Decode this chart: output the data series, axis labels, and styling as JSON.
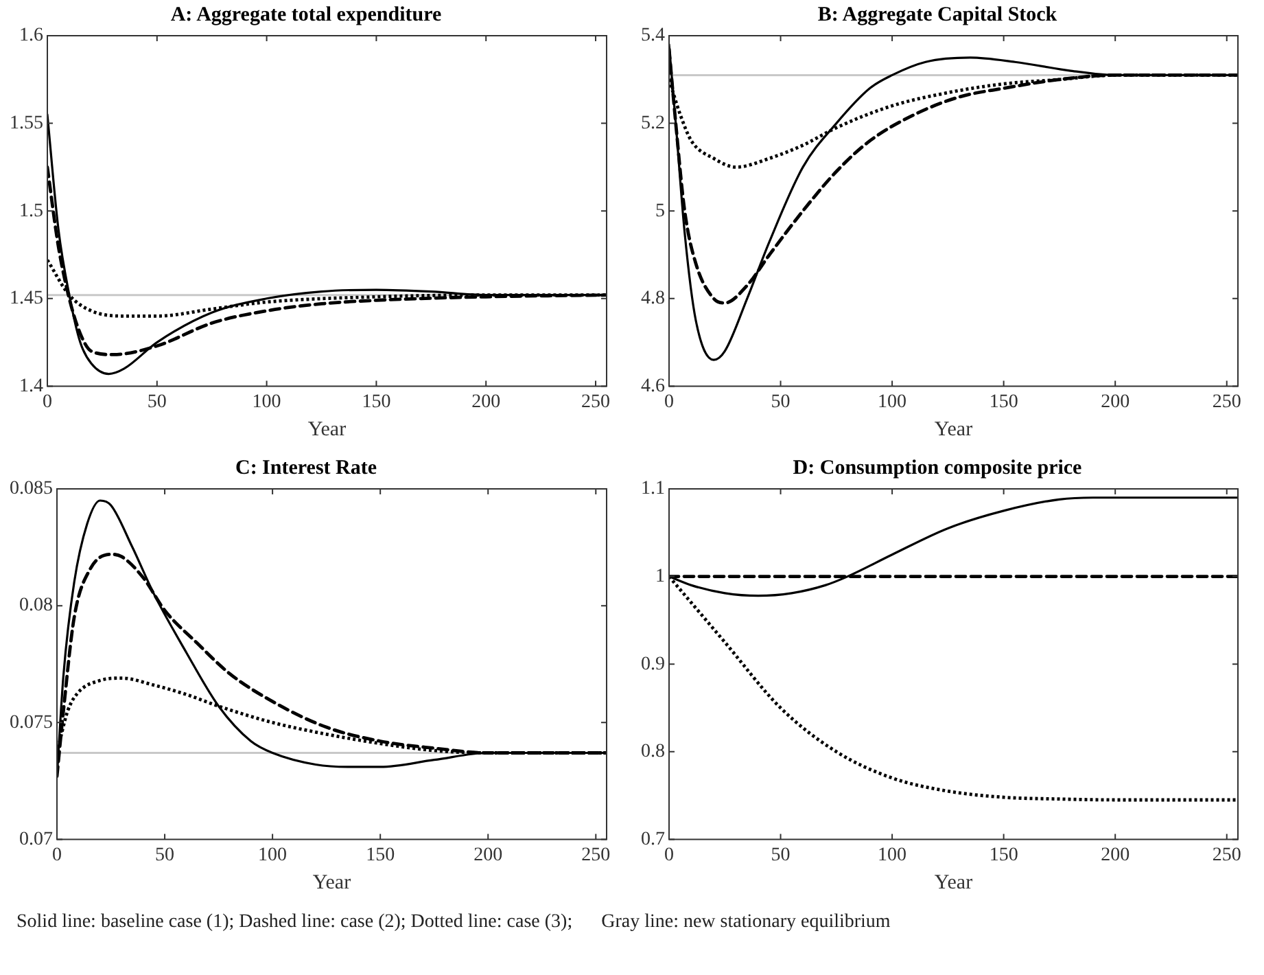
{
  "chart_data": [
    {
      "type": "line",
      "title": "A: Aggregate total expenditure",
      "xlabel": "Year",
      "xlim": [
        0,
        255
      ],
      "xticks": [
        0,
        50,
        100,
        150,
        200,
        250
      ],
      "ylim": [
        1.4,
        1.6
      ],
      "yticks": [
        1.4,
        1.45,
        1.5,
        1.55,
        1.6
      ],
      "grid": false,
      "legend": false,
      "marker": "none",
      "ref_lines": [
        {
          "axis": "y",
          "value": 1.452,
          "color": "#c8c8c8"
        }
      ],
      "series": [
        {
          "color": "#000000",
          "line_style": "solid",
          "x": [
            0,
            5,
            10,
            15,
            20,
            28,
            35,
            50,
            75,
            100,
            125,
            150,
            175,
            200,
            255
          ],
          "values": [
            1.555,
            1.49,
            1.452,
            1.425,
            1.413,
            1.407,
            1.41,
            1.425,
            1.442,
            1.45,
            1.454,
            1.455,
            1.454,
            1.452,
            1.452
          ]
        },
        {
          "color": "#000000",
          "line_style": "dashed",
          "x": [
            0,
            5,
            10,
            15,
            20,
            30,
            50,
            75,
            100,
            125,
            150,
            200,
            255
          ],
          "values": [
            1.525,
            1.48,
            1.45,
            1.43,
            1.42,
            1.418,
            1.423,
            1.436,
            1.443,
            1.447,
            1.449,
            1.451,
            1.452
          ]
        },
        {
          "color": "#000000",
          "line_style": "dotted",
          "x": [
            0,
            10,
            20,
            35,
            50,
            75,
            100,
            150,
            200,
            255
          ],
          "values": [
            1.472,
            1.452,
            1.443,
            1.44,
            1.44,
            1.444,
            1.448,
            1.451,
            1.452,
            1.452
          ]
        }
      ]
    },
    {
      "type": "line",
      "title": "B: Aggregate Capital Stock",
      "xlabel": "Year",
      "xlim": [
        0,
        255
      ],
      "xticks": [
        0,
        50,
        100,
        150,
        200,
        250
      ],
      "ylim": [
        4.6,
        5.4
      ],
      "yticks": [
        4.6,
        4.8,
        5,
        5.2,
        5.4
      ],
      "grid": false,
      "legend": false,
      "marker": "none",
      "ref_lines": [
        {
          "axis": "y",
          "value": 5.31,
          "color": "#c8c8c8"
        }
      ],
      "series": [
        {
          "color": "#000000",
          "line_style": "solid",
          "x": [
            0,
            3,
            7,
            12,
            20,
            25,
            35,
            45,
            60,
            75,
            90,
            100,
            115,
            135,
            155,
            180,
            200,
            255
          ],
          "values": [
            5.38,
            5.2,
            4.95,
            4.75,
            4.66,
            4.68,
            4.8,
            4.93,
            5.1,
            5.2,
            5.28,
            5.31,
            5.34,
            5.35,
            5.34,
            5.32,
            5.31,
            5.31
          ]
        },
        {
          "color": "#000000",
          "line_style": "dashed",
          "x": [
            0,
            3,
            7,
            12,
            20,
            25,
            35,
            45,
            60,
            75,
            90,
            110,
            130,
            150,
            175,
            200,
            255
          ],
          "values": [
            5.37,
            5.2,
            5.0,
            4.88,
            4.8,
            4.79,
            4.83,
            4.9,
            5.0,
            5.09,
            5.16,
            5.22,
            5.26,
            5.28,
            5.3,
            5.31,
            5.31
          ]
        },
        {
          "color": "#000000",
          "line_style": "dotted",
          "x": [
            0,
            5,
            10,
            20,
            30,
            45,
            60,
            75,
            100,
            125,
            150,
            175,
            200,
            255
          ],
          "values": [
            5.3,
            5.22,
            5.16,
            5.12,
            5.1,
            5.12,
            5.15,
            5.19,
            5.24,
            5.27,
            5.29,
            5.3,
            5.31,
            5.31
          ]
        }
      ]
    },
    {
      "type": "line",
      "title": "C: Interest Rate",
      "xlabel": "Year",
      "xlim": [
        0,
        255
      ],
      "xticks": [
        0,
        50,
        100,
        150,
        200,
        250
      ],
      "ylim": [
        0.07,
        0.085
      ],
      "yticks": [
        0.07,
        0.075,
        0.08,
        0.085
      ],
      "grid": false,
      "legend": false,
      "marker": "none",
      "ref_lines": [
        {
          "axis": "y",
          "value": 0.0737,
          "color": "#c8c8c8"
        }
      ],
      "series": [
        {
          "color": "#000000",
          "line_style": "solid",
          "x": [
            0,
            3,
            8,
            14,
            20,
            25,
            35,
            45,
            60,
            75,
            90,
            100,
            120,
            135,
            150,
            175,
            200,
            255
          ],
          "values": [
            0.0727,
            0.077,
            0.081,
            0.0835,
            0.0845,
            0.0843,
            0.0825,
            0.0805,
            0.078,
            0.0757,
            0.0742,
            0.0737,
            0.0732,
            0.0731,
            0.0731,
            0.0734,
            0.0737,
            0.0737
          ]
        },
        {
          "color": "#000000",
          "line_style": "dashed",
          "x": [
            0,
            3,
            8,
            15,
            25,
            30,
            40,
            50,
            65,
            80,
            100,
            125,
            150,
            175,
            200,
            255
          ],
          "values": [
            0.0727,
            0.0755,
            0.0795,
            0.0815,
            0.0822,
            0.0821,
            0.0812,
            0.0798,
            0.0784,
            0.0771,
            0.0759,
            0.0748,
            0.0742,
            0.0739,
            0.0737,
            0.0737
          ]
        },
        {
          "color": "#000000",
          "line_style": "dotted",
          "x": [
            0,
            5,
            10,
            20,
            30,
            45,
            60,
            75,
            100,
            125,
            150,
            175,
            200,
            255
          ],
          "values": [
            0.0737,
            0.0755,
            0.0763,
            0.0768,
            0.0769,
            0.0766,
            0.0762,
            0.0757,
            0.075,
            0.0745,
            0.0741,
            0.0738,
            0.0737,
            0.0737
          ]
        }
      ]
    },
    {
      "type": "line",
      "title": "D: Consumption composite price",
      "xlabel": "Year",
      "xlim": [
        0,
        255
      ],
      "xticks": [
        0,
        50,
        100,
        150,
        200,
        250
      ],
      "ylim": [
        0.7,
        1.1
      ],
      "yticks": [
        0.7,
        0.8,
        0.9,
        1,
        1.1
      ],
      "grid": false,
      "legend": false,
      "marker": "none",
      "annotations": [
        "Solid line: baseline case (1); Dashed line: case (2); Dotted line: case (3);      Gray line: new stationary equilibrium"
      ],
      "series": [
        {
          "color": "#000000",
          "line_style": "solid",
          "x": [
            0,
            10,
            25,
            40,
            55,
            70,
            80,
            100,
            125,
            150,
            175,
            190,
            255
          ],
          "values": [
            1.0,
            0.99,
            0.981,
            0.978,
            0.981,
            0.99,
            1.0,
            1.025,
            1.055,
            1.075,
            1.088,
            1.09,
            1.09
          ]
        },
        {
          "color": "#000000",
          "line_style": "dashed",
          "x": [
            0,
            255
          ],
          "values": [
            1.0,
            1.0
          ]
        },
        {
          "color": "#000000",
          "line_style": "dotted",
          "x": [
            0,
            10,
            25,
            50,
            75,
            100,
            125,
            150,
            175,
            200,
            255
          ],
          "values": [
            1.0,
            0.97,
            0.925,
            0.85,
            0.8,
            0.77,
            0.755,
            0.748,
            0.746,
            0.745,
            0.745
          ]
        }
      ]
    }
  ]
}
